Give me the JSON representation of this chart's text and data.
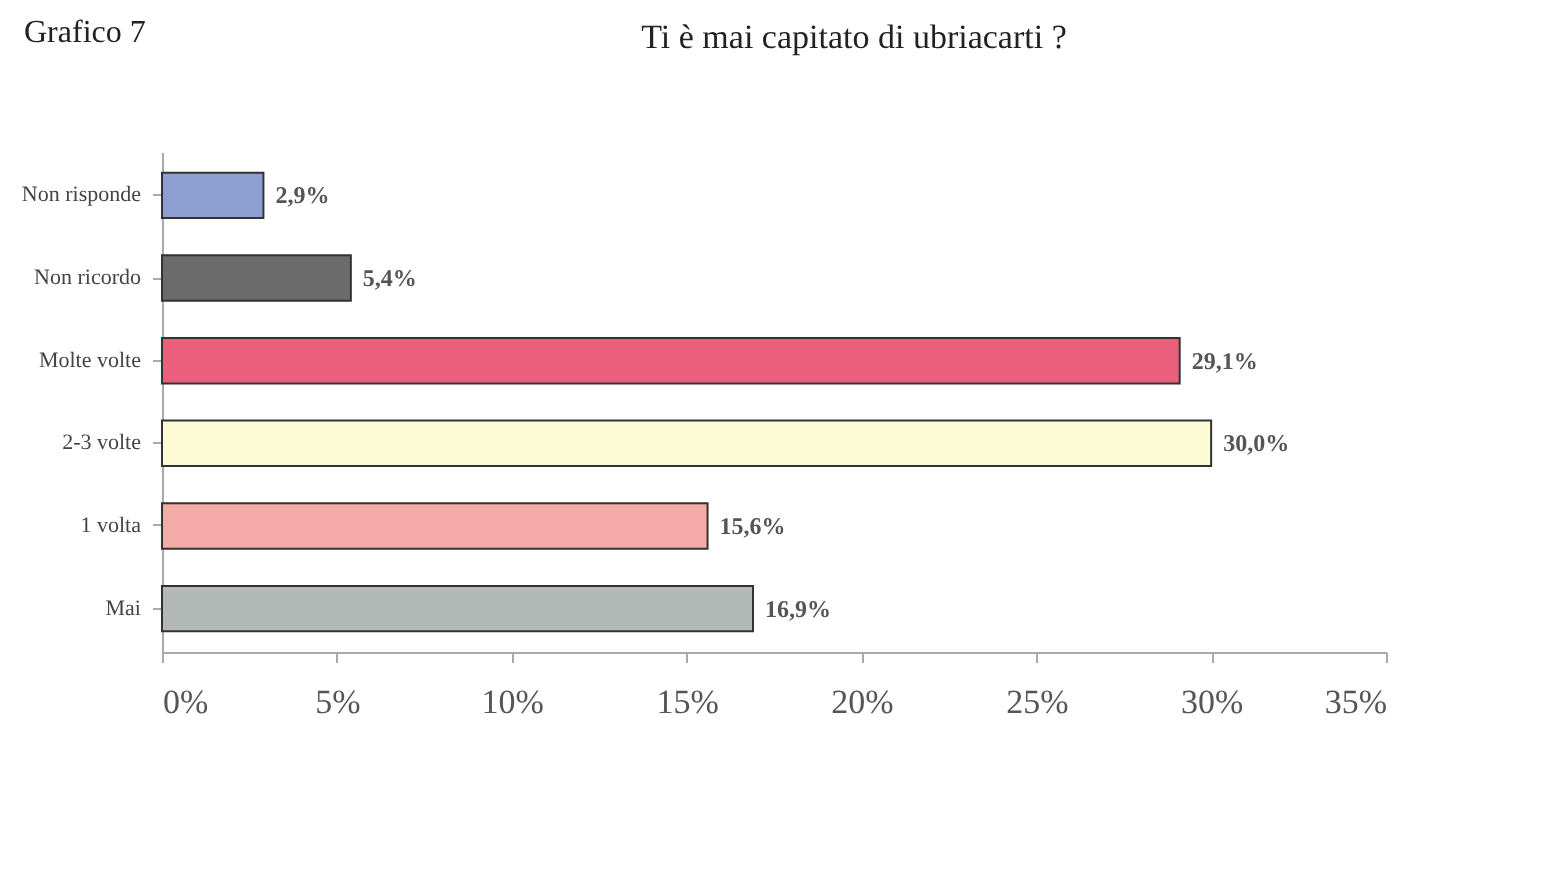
{
  "chart_data": {
    "type": "bar",
    "orientation": "horizontal",
    "title": "Ti è mai capitato di ubriacarti ?",
    "annotations": [
      "Grafico 7"
    ],
    "categories": [
      "Non risponde",
      "Non ricordo",
      "Molte volte",
      "2-3 volte",
      "1 volta",
      "Mai"
    ],
    "values": [
      2.9,
      5.4,
      29.1,
      30.0,
      15.6,
      16.9
    ],
    "value_labels": [
      "2,9%",
      "5,4%",
      "29,1%",
      "30,0%",
      "15,6%",
      "16,9%"
    ],
    "colors": [
      "#8d9fd0",
      "#6b6b6b",
      "#ec5f7c",
      "#fdfbd6",
      "#f4aaa6",
      "#b3b9b6"
    ],
    "xlim": [
      0,
      35
    ],
    "xticks": [
      {
        "value": 0,
        "label": "0%"
      },
      {
        "value": 5,
        "label": "5%"
      },
      {
        "value": 10,
        "label": "10%"
      },
      {
        "value": 15,
        "label": "15%"
      },
      {
        "value": 20,
        "label": "20%"
      },
      {
        "value": 25,
        "label": "25%"
      },
      {
        "value": 30,
        "label": "30%"
      },
      {
        "value": 35,
        "label": "35%"
      }
    ]
  }
}
